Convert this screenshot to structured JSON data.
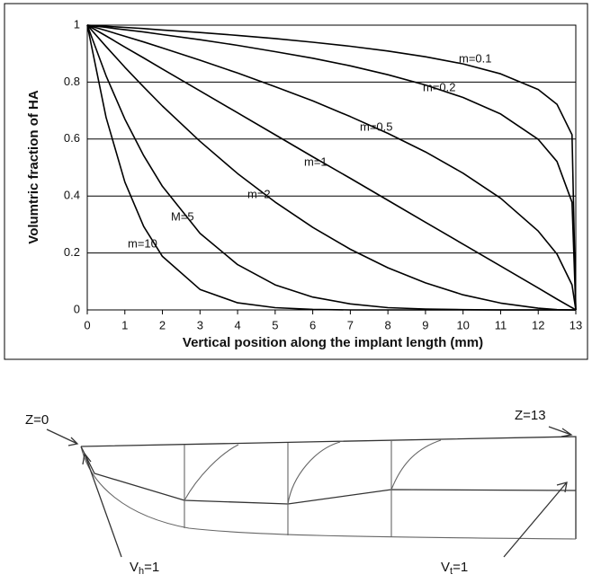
{
  "chart_data": {
    "type": "line",
    "y_label": "Volumtric fraction of HA",
    "x_label": "Vertical position along the implant length (mm)",
    "x": [
      0,
      0.5,
      1,
      1.5,
      2,
      3,
      4,
      5,
      6,
      7,
      8,
      9,
      10,
      11,
      12,
      12.5,
      12.9,
      13
    ],
    "series": [
      {
        "name": "m=0.1",
        "color": "#000000",
        "values": [
          1,
          0.996,
          0.992,
          0.988,
          0.983,
          0.974,
          0.964,
          0.953,
          0.94,
          0.926,
          0.909,
          0.889,
          0.864,
          0.829,
          0.774,
          0.722,
          0.615,
          0
        ]
      },
      {
        "name": "m=0.2",
        "color": "#000000",
        "values": [
          1,
          0.992,
          0.984,
          0.976,
          0.967,
          0.949,
          0.929,
          0.907,
          0.884,
          0.857,
          0.826,
          0.79,
          0.746,
          0.688,
          0.599,
          0.521,
          0.378,
          0
        ]
      },
      {
        "name": "m=0.5",
        "color": "#000000",
        "values": [
          1,
          0.981,
          0.961,
          0.941,
          0.92,
          0.877,
          0.832,
          0.784,
          0.734,
          0.679,
          0.62,
          0.555,
          0.48,
          0.392,
          0.277,
          0.196,
          0.088,
          0
        ]
      },
      {
        "name": "m=1",
        "color": "#000000",
        "values": [
          1,
          0.962,
          0.923,
          0.885,
          0.846,
          0.769,
          0.692,
          0.615,
          0.538,
          0.462,
          0.385,
          0.308,
          0.231,
          0.154,
          0.077,
          0.038,
          0.008,
          0
        ]
      },
      {
        "name": "m=2",
        "color": "#000000",
        "values": [
          1,
          0.925,
          0.852,
          0.783,
          0.716,
          0.592,
          0.479,
          0.379,
          0.29,
          0.213,
          0.148,
          0.095,
          0.053,
          0.024,
          0.006,
          0.001,
          0,
          0
        ]
      },
      {
        "name": "M=5",
        "color": "#000000",
        "values": [
          1,
          0.822,
          0.67,
          0.542,
          0.434,
          0.269,
          0.159,
          0.088,
          0.045,
          0.021,
          0.008,
          0.003,
          0.001,
          0,
          0,
          0,
          0,
          0
        ]
      },
      {
        "name": "m=10",
        "color": "#000000",
        "values": [
          1,
          0.676,
          0.449,
          0.293,
          0.188,
          0.072,
          0.025,
          0.008,
          0.002,
          0,
          0,
          0,
          0,
          0,
          0,
          0,
          0,
          0
        ]
      }
    ],
    "xlim": [
      0,
      13
    ],
    "xticks": [
      0,
      1,
      2,
      3,
      4,
      5,
      6,
      7,
      8,
      9,
      10,
      11,
      12,
      13
    ],
    "ylim": [
      0,
      1
    ],
    "yticks": [
      0,
      0.2,
      0.4,
      0.6,
      0.8,
      1
    ],
    "grid": true
  },
  "diagram": {
    "z_start": "Z=0",
    "z_end": "Z=13",
    "v_h": {
      "base": "V",
      "sub": "h",
      "rest": "=1"
    },
    "v_t": {
      "base": "V",
      "sub": "t",
      "rest": "=1"
    }
  }
}
